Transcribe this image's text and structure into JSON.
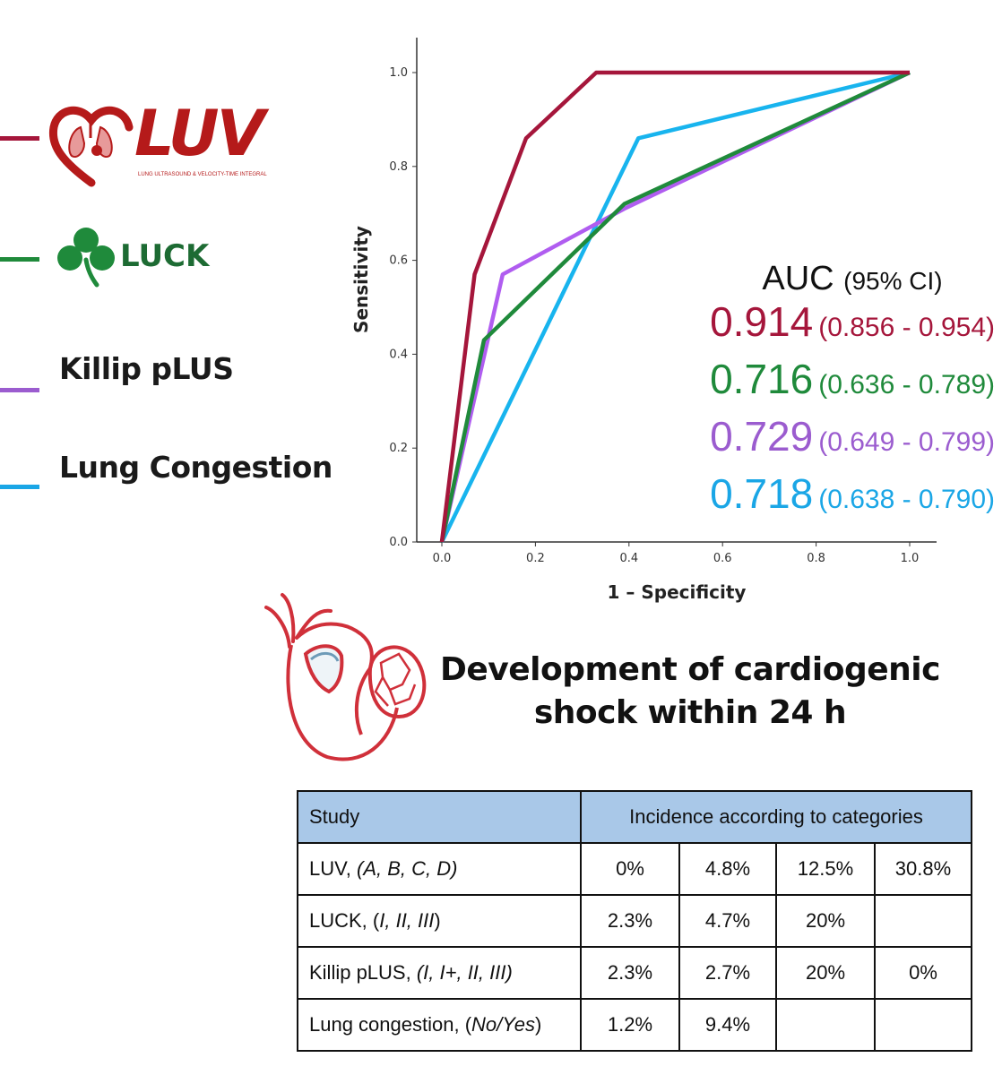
{
  "legend": [
    {
      "id": "luv",
      "color": "#a5163b",
      "label": "LUV",
      "logo_subtitle": "LUNG ULTRASOUND & VELOCITY-TIME INTEGRAL"
    },
    {
      "id": "luck",
      "color": "#1f8a3b",
      "label": "LUCK"
    },
    {
      "id": "killip",
      "color": "#9b5ccf",
      "label": "Killip pLUS"
    },
    {
      "id": "congestion",
      "color": "#1aa6e6",
      "label": "Lung Congestion"
    }
  ],
  "colors": {
    "luv": "#a5163b",
    "luck": "#1f8a3b",
    "killip": "#b05df0",
    "congestion": "#18b4ee",
    "axis": "#333333",
    "table_header": "#a9c8e8"
  },
  "icons": {
    "luv_logo": "heart-lungs-icon",
    "luck_logo": "shamrock-icon",
    "shock": "heart-shock-icon"
  },
  "chart_data": {
    "type": "line",
    "xlabel": "1 – Specificity",
    "ylabel": "Sensitivity",
    "xlim": [
      0,
      1
    ],
    "ylim": [
      0,
      1
    ],
    "x_ticks": [
      "0.0",
      "0.2",
      "0.4",
      "0.6",
      "0.8",
      "1.0"
    ],
    "y_ticks": [
      "0.0",
      "0.2",
      "0.4",
      "0.6",
      "0.8",
      "1.0"
    ],
    "grid": false,
    "series": [
      {
        "key": "luv",
        "color": "#a5163b",
        "points": [
          [
            0,
            0
          ],
          [
            0.07,
            0.57
          ],
          [
            0.18,
            0.86
          ],
          [
            0.33,
            1.0
          ],
          [
            1.0,
            1.0
          ]
        ]
      },
      {
        "key": "luck",
        "color": "#1f8a3b",
        "points": [
          [
            0,
            0
          ],
          [
            0.09,
            0.43
          ],
          [
            0.39,
            0.72
          ],
          [
            1.0,
            1.0
          ]
        ]
      },
      {
        "key": "killip",
        "color": "#b05df0",
        "points": [
          [
            0,
            0
          ],
          [
            0.13,
            0.57
          ],
          [
            0.39,
            0.71
          ],
          [
            1.0,
            1.0
          ]
        ]
      },
      {
        "key": "congestion",
        "color": "#18b4ee",
        "points": [
          [
            0,
            0
          ],
          [
            0.42,
            0.86
          ],
          [
            1.0,
            1.0
          ]
        ]
      }
    ]
  },
  "auc": {
    "title": "AUC",
    "title_suffix": "(95% CI)",
    "rows": [
      {
        "value": "0.914",
        "ci": "(0.856 - 0.954)",
        "color": "#a5163b"
      },
      {
        "value": "0.716",
        "ci": "(0.636 - 0.789)",
        "color": "#1f8a3b"
      },
      {
        "value": "0.729",
        "ci": "(0.649 - 0.799)",
        "color": "#9b5ccf"
      },
      {
        "value": "0.718",
        "ci": "(0.638 - 0.790)",
        "color": "#1aa6e6"
      }
    ]
  },
  "shock_title": [
    "Development of cardiogenic",
    "shock within 24 h"
  ],
  "table": {
    "header": {
      "study": "Study",
      "incidence": "Incidence according to categories"
    },
    "rows": [
      {
        "name": "LUV, ",
        "cats": "(A, B, C, D)",
        "values": [
          "0%",
          "4.8%",
          "12.5%",
          "30.8%"
        ]
      },
      {
        "name": "LUCK, (",
        "cats": "I, II, III",
        "close": ")",
        "values": [
          "2.3%",
          "4.7%",
          "20%",
          ""
        ]
      },
      {
        "name": "Killip pLUS, ",
        "cats": "(I, I+, II, III)",
        "values": [
          "2.3%",
          "2.7%",
          "20%",
          "0%"
        ]
      },
      {
        "name": "Lung congestion, (",
        "cats": "No/Yes",
        "close": ")",
        "values": [
          "1.2%",
          "9.4%",
          "",
          ""
        ]
      }
    ]
  }
}
